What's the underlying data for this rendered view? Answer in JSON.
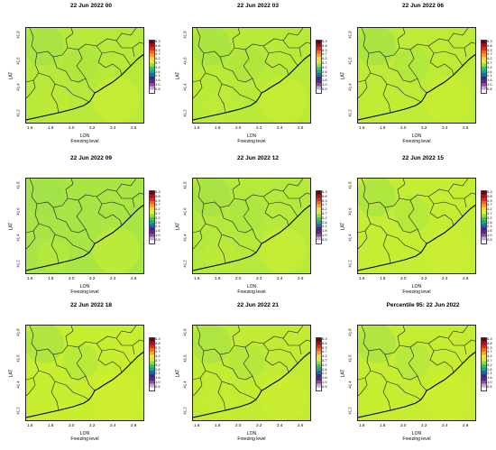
{
  "panels": [
    {
      "date": "22 Jun 2022",
      "hour": "00",
      "tint": "#b7e93a"
    },
    {
      "date": "22 Jun 2022",
      "hour": "03",
      "tint": "#b9ea38"
    },
    {
      "date": "22 Jun 2022",
      "hour": "06",
      "tint": "#bdeb36"
    },
    {
      "date": "22 Jun 2022",
      "hour": "09",
      "tint": "#a8e545"
    },
    {
      "date": "22 Jun 2022",
      "hour": "12",
      "tint": "#b5e93c"
    },
    {
      "date": "22 Jun 2022",
      "hour": "15",
      "tint": "#c4ed34"
    },
    {
      "date": "22 Jun 2022",
      "hour": "18",
      "tint": "#c8ee30"
    },
    {
      "date": "22 Jun 2022",
      "hour": "21",
      "tint": "#c2ec34"
    },
    {
      "date": "22 Jun 2022",
      "hour": "",
      "prefix": "Percentile 95:",
      "tint": "#c6ed32"
    }
  ],
  "axes": {
    "xlabel": "LON",
    "ylabel": "LAT",
    "subtitle": "Freezing level",
    "lon_ticks": [
      "1.6",
      "1.8",
      "2.0",
      "2.2",
      "2.4",
      "2.6"
    ],
    "lat_ticks": [
      "41.8",
      "41.6",
      "41.4",
      "41.2"
    ]
  },
  "colorbar": {
    "ticks": [
      "6.3",
      "5.8",
      "5.3",
      "4.7",
      "4.2",
      "3.7",
      "3.2",
      "2.6",
      "2.1",
      "1.6",
      "1.0",
      "0.5"
    ],
    "colors": [
      "#6a0018",
      "#a8101c",
      "#d62d1f",
      "#ef6a1d",
      "#f7a12b",
      "#f7d64a",
      "#d8ee36",
      "#8fdc44",
      "#3cbf60",
      "#1fa47e",
      "#2c5fb4",
      "#3a2a8a",
      "#5a2a7a",
      "#8c4aa0",
      "#c9a4d8",
      "#ffffff"
    ]
  }
}
